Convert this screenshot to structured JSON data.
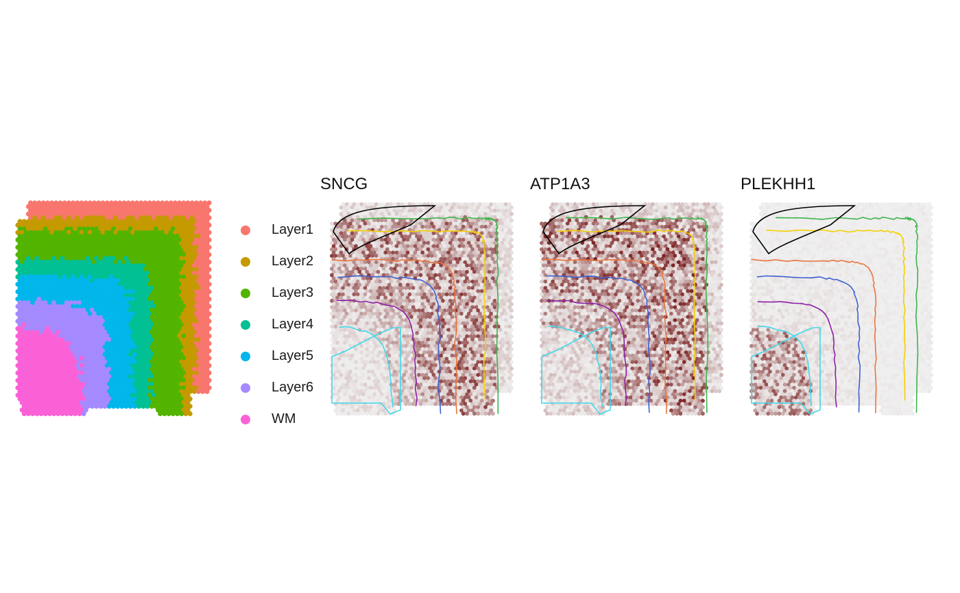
{
  "layers": [
    {
      "name": "Layer1",
      "color": "#F8766D"
    },
    {
      "name": "Layer2",
      "color": "#C49A00"
    },
    {
      "name": "Layer3",
      "color": "#53B400"
    },
    {
      "name": "Layer4",
      "color": "#00C094"
    },
    {
      "name": "Layer5",
      "color": "#00B6EB"
    },
    {
      "name": "Layer6",
      "color": "#A58AFF"
    },
    {
      "name": "WM",
      "color": "#FB61D7"
    }
  ],
  "panels": [
    {
      "title": "SNCG",
      "expression_trend": "high in Layer2-Layer5"
    },
    {
      "title": "ATP1A3",
      "expression_trend": "high in Layer2-Layer6"
    },
    {
      "title": "PLEKHH1",
      "expression_trend": "high in WM"
    }
  ],
  "colors": {
    "expression_low": "#f0f0f0",
    "expression_high": "#7a1f1f",
    "boundary_layer1": "#000000",
    "boundary_layer2": "#3ab54a",
    "boundary_layer3": "#f5d000",
    "boundary_layer4": "#e8743b",
    "boundary_layer5": "#3b5fd0",
    "boundary_layer6": "#8b1ea8",
    "boundary_wm": "#40d8e8"
  }
}
